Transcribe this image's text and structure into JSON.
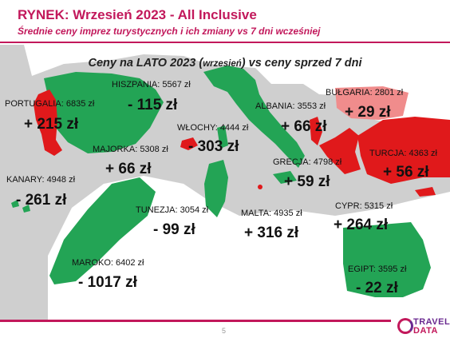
{
  "header": {
    "title": "RYNEK: Wrzesień 2023 - All Inclusive",
    "subtitle": "Średnie ceny imprez turystycznych i ich zmiany vs 7 dni wcześniej"
  },
  "map_title": {
    "part1": "Ceny na LATO 2023 (",
    "part2": "wrzesień",
    "part3": ") vs ceny sprzed 7 dni"
  },
  "colors": {
    "accent": "#c2185b",
    "up": "#e0191b",
    "up_light": "#f08c8c",
    "down": "#23a455",
    "sea": "#cfcfcf"
  },
  "destinations": [
    {
      "name": "HISZPANIA",
      "price": "5567 zł",
      "change": "- 115 zł",
      "trend": "down"
    },
    {
      "name": "PORTUGALIA",
      "price": "6835 zł",
      "change": "+ 215 zł",
      "trend": "up"
    },
    {
      "name": "WŁOCHY",
      "price": "4444 zł",
      "change": "- 303 zł",
      "trend": "down"
    },
    {
      "name": "ALBANIA",
      "price": "3553 zł",
      "change": "+ 66 zł",
      "trend": "up"
    },
    {
      "name": "BUŁGARIA",
      "price": "2801 zł",
      "change": "+ 29 zł",
      "trend": "up"
    },
    {
      "name": "MAJORKA",
      "price": "5308 zł",
      "change": "+ 66 zł",
      "trend": "up"
    },
    {
      "name": "TURCJA",
      "price": "4363 zł",
      "change": "+ 56 zł",
      "trend": "up"
    },
    {
      "name": "GRECJA",
      "price": "4798 zł",
      "change": "+ 59 zł",
      "trend": "up"
    },
    {
      "name": "KANARY",
      "price": "4948 zł",
      "change": "- 261 zł",
      "trend": "down"
    },
    {
      "name": "TUNEZJA",
      "price": "3054 zł",
      "change": "- 99 zł",
      "trend": "down"
    },
    {
      "name": "MALTA",
      "price": "4935 zł",
      "change": "+ 316 zł",
      "trend": "up"
    },
    {
      "name": "CYPR",
      "price": "5315 zł",
      "change": "+ 264 zł",
      "trend": "up"
    },
    {
      "name": "MAROKO",
      "price": "6402 zł",
      "change": "- 1017 zł",
      "trend": "down"
    },
    {
      "name": "EGIPT",
      "price": "3595 zł",
      "change": "- 22 zł",
      "trend": "down"
    }
  ],
  "footer": {
    "page": "5",
    "logo_line1": "TRAVEL",
    "logo_line2": "DATA"
  }
}
